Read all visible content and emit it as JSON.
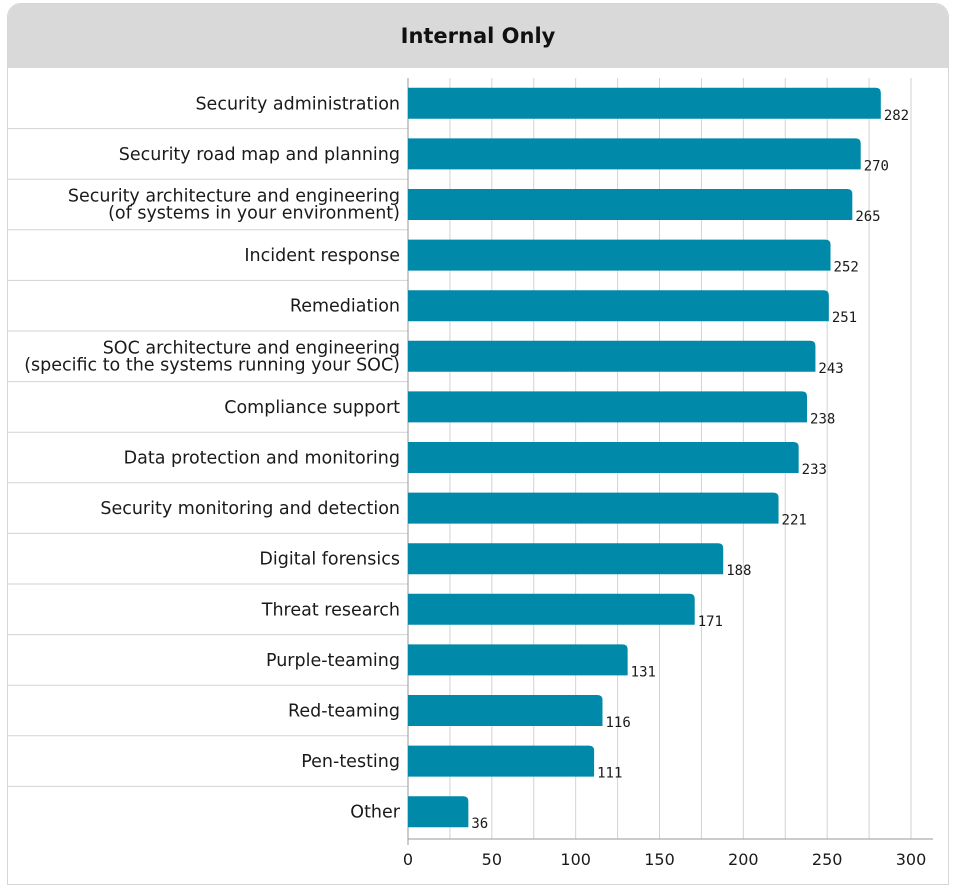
{
  "colors": {
    "bar": "#0089a8",
    "grid": "#d2d2d2",
    "header": "#d9d9d9"
  },
  "chart_data": {
    "type": "bar",
    "orientation": "horizontal",
    "title": "Internal Only",
    "categories": [
      [
        "Security administration"
      ],
      [
        "Security road map and planning"
      ],
      [
        "Security architecture and engineering",
        "(of systems in your environment)"
      ],
      [
        "Incident response"
      ],
      [
        "Remediation"
      ],
      [
        "SOC architecture and engineering",
        "(specific to the systems running your SOC)"
      ],
      [
        "Compliance support"
      ],
      [
        "Data protection and monitoring"
      ],
      [
        "Security monitoring and detection"
      ],
      [
        "Digital forensics"
      ],
      [
        "Threat research"
      ],
      [
        "Purple-teaming"
      ],
      [
        "Red-teaming"
      ],
      [
        "Pen-testing"
      ],
      [
        "Other"
      ]
    ],
    "values": [
      282,
      270,
      265,
      252,
      251,
      243,
      238,
      233,
      221,
      188,
      171,
      131,
      116,
      111,
      36
    ],
    "xlim": [
      0,
      300
    ],
    "xticks": [
      0,
      50,
      100,
      150,
      200,
      250,
      300
    ],
    "grid": true,
    "data_labels": true
  }
}
